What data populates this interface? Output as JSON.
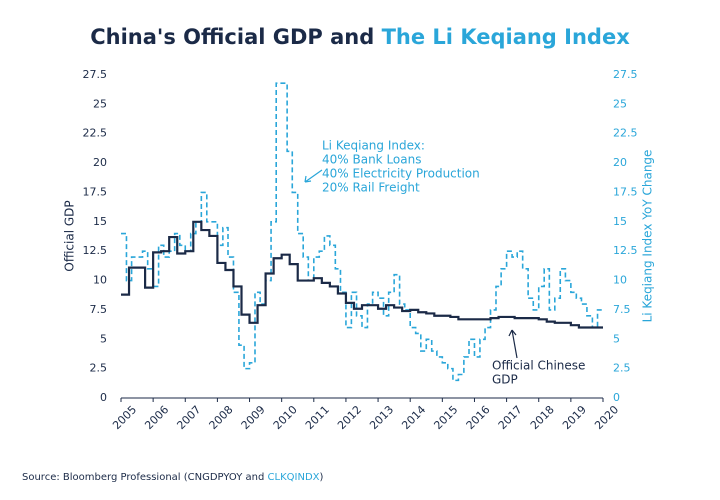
{
  "chart_data": {
    "type": "step-line",
    "title_parts": [
      "China's Official GDP and ",
      "The Li Keqiang Index"
    ],
    "title_colors": [
      "#1b2a47",
      "#2aa6d9"
    ],
    "ylabel": "Official GDP",
    "y2label": "Li Keqiang Index YoY Change",
    "xlim": [
      2005,
      2020
    ],
    "xticks": [
      2005,
      2006,
      2007,
      2008,
      2009,
      2010,
      2011,
      2012,
      2013,
      2014,
      2015,
      2016,
      2017,
      2018,
      2019,
      2020
    ],
    "ylim": [
      0,
      27.5
    ],
    "yticks": [
      0,
      2.5,
      5,
      7.5,
      10,
      12.5,
      15,
      17.5,
      20,
      22.5,
      25,
      27.5
    ],
    "y2lim": [
      0,
      27.5
    ],
    "y2ticks": [
      0,
      2.5,
      5,
      7.5,
      10,
      12.5,
      15,
      17.5,
      20,
      22.5,
      25,
      27.5
    ],
    "series": [
      {
        "name": "Official Chinese GDP",
        "color": "#1b2a47",
        "x": [
          2005,
          2005.25,
          2005.5,
          2005.75,
          2006,
          2006.25,
          2006.5,
          2006.75,
          2007,
          2007.25,
          2007.5,
          2007.75,
          2008,
          2008.25,
          2008.5,
          2008.75,
          2009,
          2009.25,
          2009.5,
          2009.75,
          2010,
          2010.25,
          2010.5,
          2010.75,
          2011,
          2011.25,
          2011.5,
          2011.75,
          2012,
          2012.25,
          2012.5,
          2012.75,
          2013,
          2013.25,
          2013.5,
          2013.75,
          2014,
          2014.25,
          2014.5,
          2014.75,
          2015,
          2015.25,
          2015.5,
          2015.75,
          2016,
          2016.25,
          2016.5,
          2016.75,
          2017,
          2017.25,
          2017.5,
          2017.75,
          2018,
          2018.25,
          2018.5,
          2018.75,
          2019,
          2019.25,
          2019.5,
          2019.75
        ],
        "values": [
          8.8,
          11.1,
          11.1,
          9.4,
          12.4,
          12.5,
          13.7,
          12.3,
          12.5,
          15.0,
          14.3,
          13.8,
          11.5,
          10.9,
          9.5,
          7.1,
          6.4,
          7.9,
          10.6,
          11.9,
          12.2,
          11.4,
          10.0,
          10.0,
          10.2,
          9.8,
          9.5,
          8.9,
          8.1,
          7.6,
          7.9,
          7.9,
          7.6,
          7.9,
          7.7,
          7.4,
          7.5,
          7.3,
          7.2,
          7.0,
          7.0,
          6.9,
          6.7,
          6.7,
          6.7,
          6.7,
          6.8,
          6.9,
          6.9,
          6.8,
          6.8,
          6.8,
          6.7,
          6.5,
          6.4,
          6.4,
          6.2,
          6.0,
          6.0,
          6.0
        ]
      },
      {
        "name": "Li Keqiang Index",
        "color": "#2aa6d9",
        "axis": "y2",
        "dashed": true,
        "x": [
          2005,
          2005.17,
          2005.33,
          2005.5,
          2005.67,
          2005.83,
          2006,
          2006.17,
          2006.33,
          2006.5,
          2006.67,
          2006.83,
          2007,
          2007.17,
          2007.33,
          2007.5,
          2007.67,
          2007.83,
          2008,
          2008.17,
          2008.33,
          2008.5,
          2008.67,
          2008.83,
          2009,
          2009.17,
          2009.33,
          2009.5,
          2009.67,
          2009.83,
          2010,
          2010.17,
          2010.33,
          2010.5,
          2010.67,
          2010.83,
          2011,
          2011.17,
          2011.33,
          2011.5,
          2011.67,
          2011.83,
          2012,
          2012.17,
          2012.33,
          2012.5,
          2012.67,
          2012.83,
          2013,
          2013.17,
          2013.33,
          2013.5,
          2013.67,
          2013.83,
          2014,
          2014.17,
          2014.33,
          2014.5,
          2014.67,
          2014.83,
          2015,
          2015.17,
          2015.33,
          2015.5,
          2015.67,
          2015.83,
          2016,
          2016.17,
          2016.33,
          2016.5,
          2016.67,
          2016.83,
          2017,
          2017.17,
          2017.33,
          2017.5,
          2017.67,
          2017.83,
          2018,
          2018.17,
          2018.33,
          2018.5,
          2018.67,
          2018.83,
          2019,
          2019.17,
          2019.33,
          2019.5,
          2019.67,
          2019.83
        ],
        "values": [
          14,
          10,
          12,
          12,
          12.5,
          11,
          9.5,
          13,
          12,
          12.5,
          14,
          13,
          12.5,
          14,
          15,
          17.5,
          15,
          15,
          13,
          14.5,
          12,
          9,
          4.5,
          2.5,
          3,
          9,
          8,
          10,
          15,
          26.8,
          26.8,
          21,
          17.5,
          14,
          12,
          10,
          12,
          12.5,
          13.8,
          13,
          11,
          9,
          6,
          9,
          7,
          6,
          8,
          9,
          8.5,
          7,
          9,
          10.5,
          8,
          7.5,
          6,
          5.5,
          4,
          5,
          4,
          3.5,
          3,
          2.5,
          1.5,
          2,
          3.5,
          5,
          3.5,
          5,
          6,
          7.5,
          9.5,
          11,
          12.5,
          12,
          12.5,
          11,
          8.5,
          7.5,
          9.5,
          11,
          7.5,
          8.5,
          11,
          10,
          9,
          8.5,
          8,
          7,
          6,
          7.5
        ]
      }
    ],
    "annotations": [
      {
        "lines": [
          "Li Keqiang Index:",
          "40% Bank Loans",
          "40% Electricity Production",
          "20% Rail Freight"
        ],
        "color": "#2aa6d9"
      },
      {
        "lines": [
          "Official Chinese",
          "GDP"
        ],
        "color": "#1b2a47"
      }
    ],
    "source_parts": [
      "Source: Bloomberg Professional (CNGDPYOY and ",
      "CLKQINDX",
      ")"
    ],
    "source_colors": [
      "#1b2a47",
      "#2aa6d9",
      "#1b2a47"
    ]
  }
}
